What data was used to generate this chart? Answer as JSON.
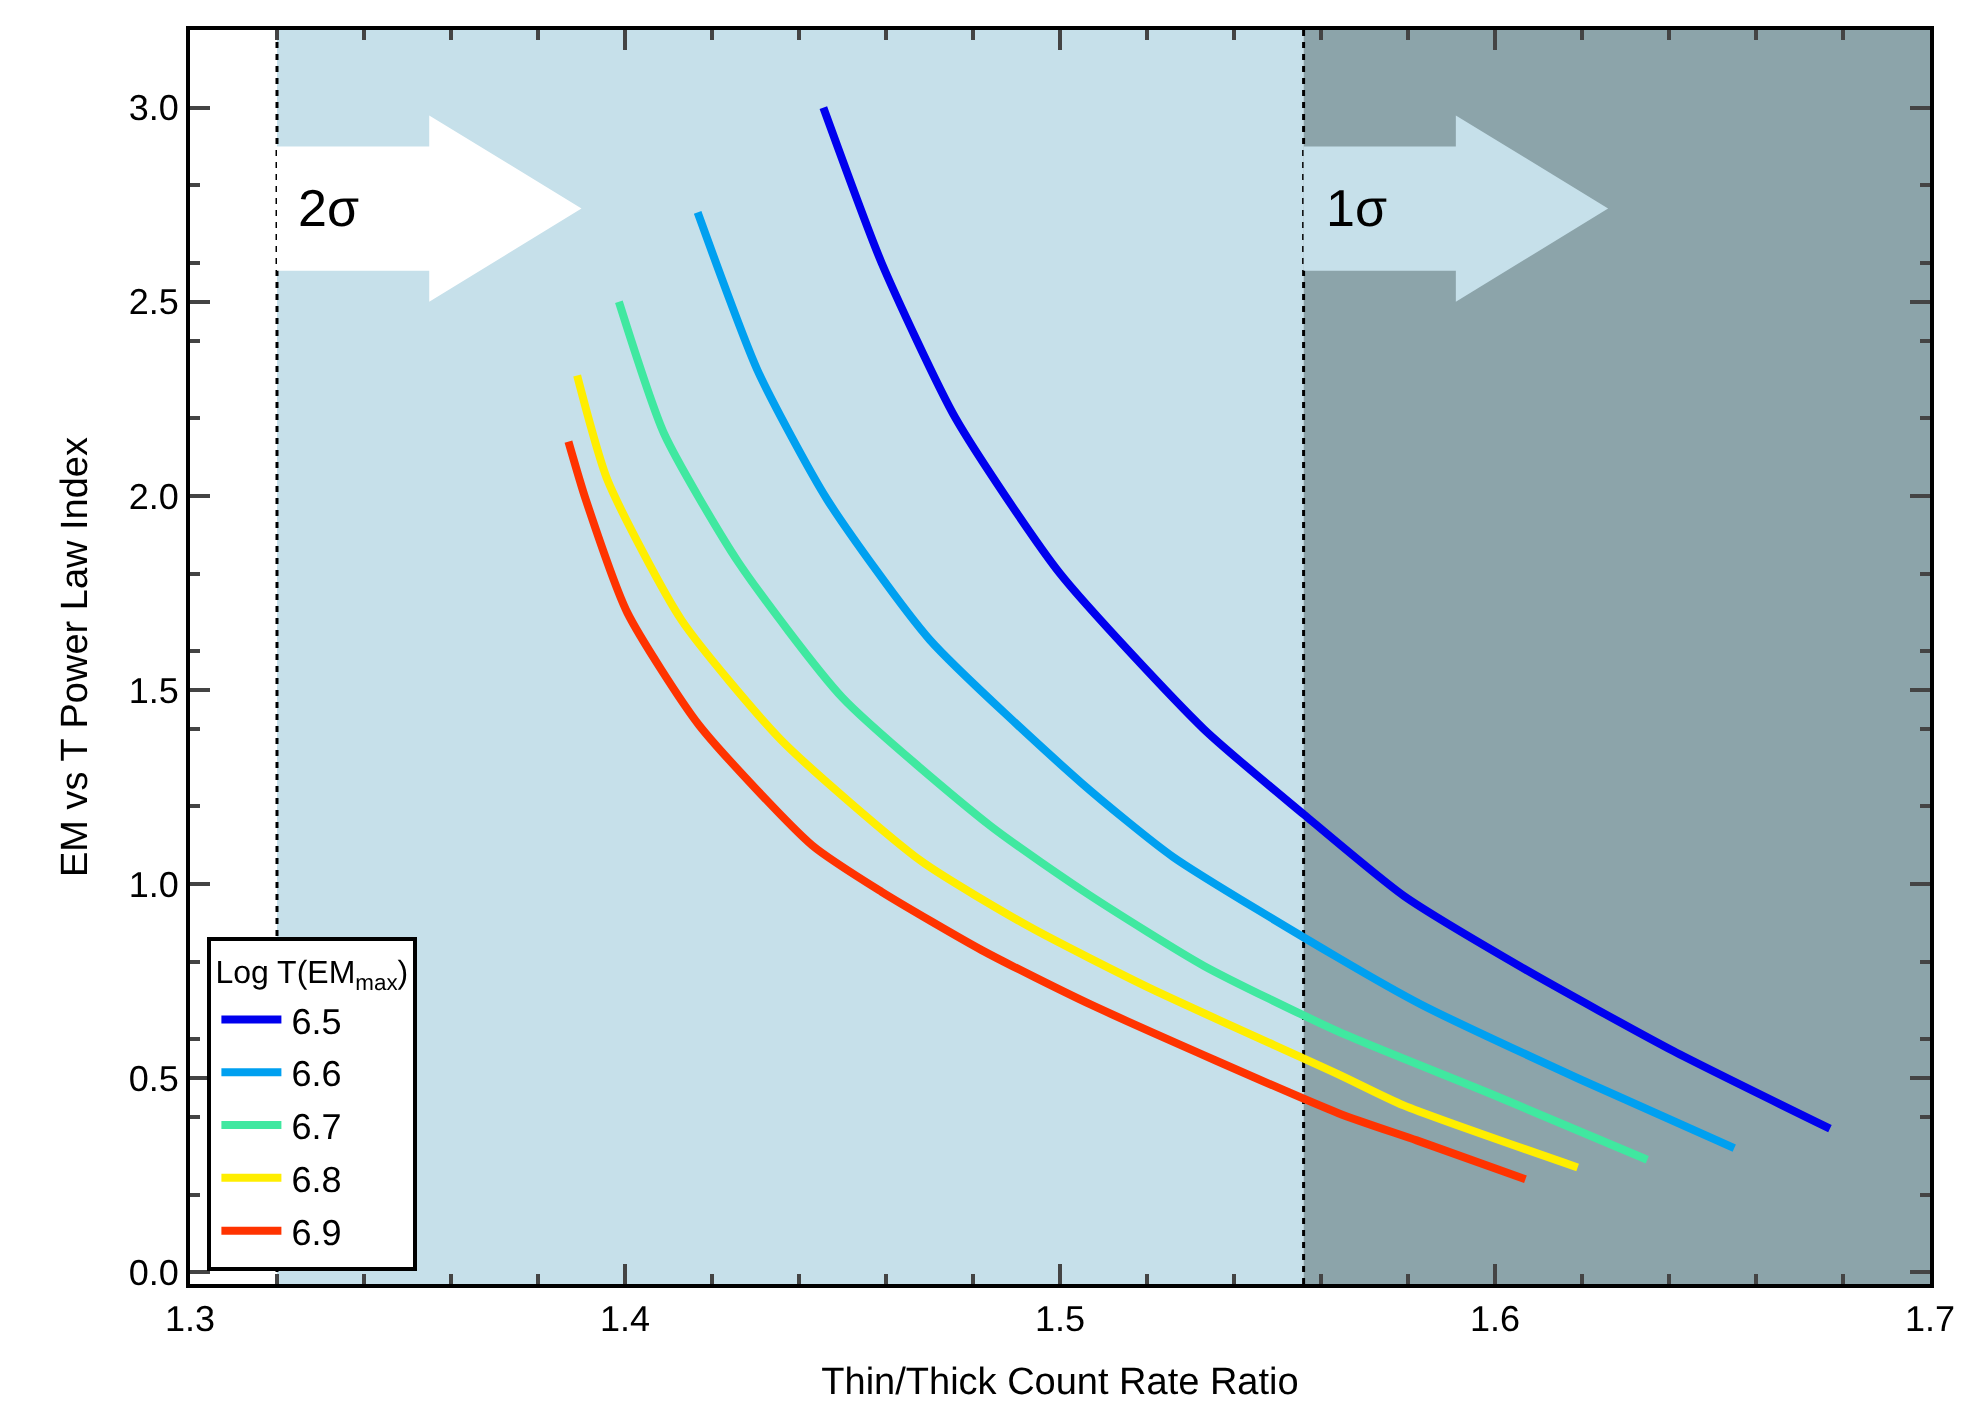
{
  "chart_data": {
    "type": "line",
    "xlabel": "Thin/Thick Count Rate Ratio",
    "ylabel": "EM vs T Power Law Index",
    "legend_title": "Log T(EM$_{max}$)",
    "xlim": [
      1.3,
      1.7
    ],
    "xticks": [
      1.3,
      1.4,
      1.5,
      1.6,
      1.7
    ],
    "ylim": [
      -0.03,
      3.2
    ],
    "yticks": [
      {
        "value": 0,
        "label": "0.0"
      },
      0.5,
      {
        "value": 1,
        "label": "1.0"
      },
      1.5,
      {
        "value": 2,
        "label": "2.0"
      },
      2.5,
      {
        "value": 3,
        "label": "3.0"
      }
    ],
    "grid": false,
    "legend": "bottom left",
    "marker": "none",
    "line_style": "solid",
    "bands": [
      {
        "axis": "x",
        "from": 1.32,
        "to": 1.556,
        "color": "#c6e0ea"
      },
      {
        "axis": "x",
        "from": 1.556,
        "to": 1.7,
        "color": "#8ca4aa"
      }
    ],
    "ref_lines": [
      {
        "axis": "x",
        "value": 1.32,
        "color": "#000000",
        "line_style": "dotted"
      },
      {
        "axis": "x",
        "value": 1.556,
        "color": "#000000",
        "line_style": "dotted"
      }
    ],
    "annotations": [
      "2σ",
      "1σ"
    ],
    "series": [
      {
        "name": "6.5",
        "color": "#0000ee",
        "x": [
          1.4456,
          1.459,
          1.476,
          1.5,
          1.533,
          1.556,
          1.579,
          1.607,
          1.641,
          1.677
        ],
        "values": [
          3.0,
          2.6,
          2.2,
          1.8,
          1.4,
          1.18,
          0.97,
          0.78,
          0.57,
          0.37
        ]
      },
      {
        "name": "6.6",
        "color": "#00a0f0",
        "x": [
          1.4167,
          1.4306,
          1.4465,
          1.47,
          1.505,
          1.526,
          1.564,
          1.583,
          1.619,
          1.655
        ],
        "values": [
          2.73,
          2.32,
          1.99,
          1.63,
          1.26,
          1.07,
          0.81,
          0.69,
          0.5,
          0.32
        ]
      },
      {
        "name": "6.7",
        "color": "#40e8a0",
        "x": [
          1.3986,
          1.409,
          1.426,
          1.45,
          1.484,
          1.507,
          1.533,
          1.564,
          1.599,
          1.635
        ],
        "values": [
          2.5,
          2.16,
          1.83,
          1.48,
          1.15,
          0.97,
          0.79,
          0.62,
          0.46,
          0.29
        ]
      },
      {
        "name": "6.8",
        "color": "#ffee00",
        "x": [
          1.389,
          1.396,
          1.413,
          1.436,
          1.468,
          1.493,
          1.521,
          1.564,
          1.579,
          1.619
        ],
        "values": [
          2.31,
          2.04,
          1.68,
          1.37,
          1.06,
          0.89,
          0.73,
          0.51,
          0.43,
          0.27
        ]
      },
      {
        "name": "6.9",
        "color": "#ff3300",
        "x": [
          1.387,
          1.391,
          1.4005,
          1.417,
          1.443,
          1.459,
          1.482,
          1.507,
          1.564,
          1.582,
          1.607
        ],
        "values": [
          2.14,
          1.99,
          1.7,
          1.41,
          1.1,
          0.98,
          0.83,
          0.69,
          0.41,
          0.34,
          0.24
        ]
      }
    ]
  }
}
